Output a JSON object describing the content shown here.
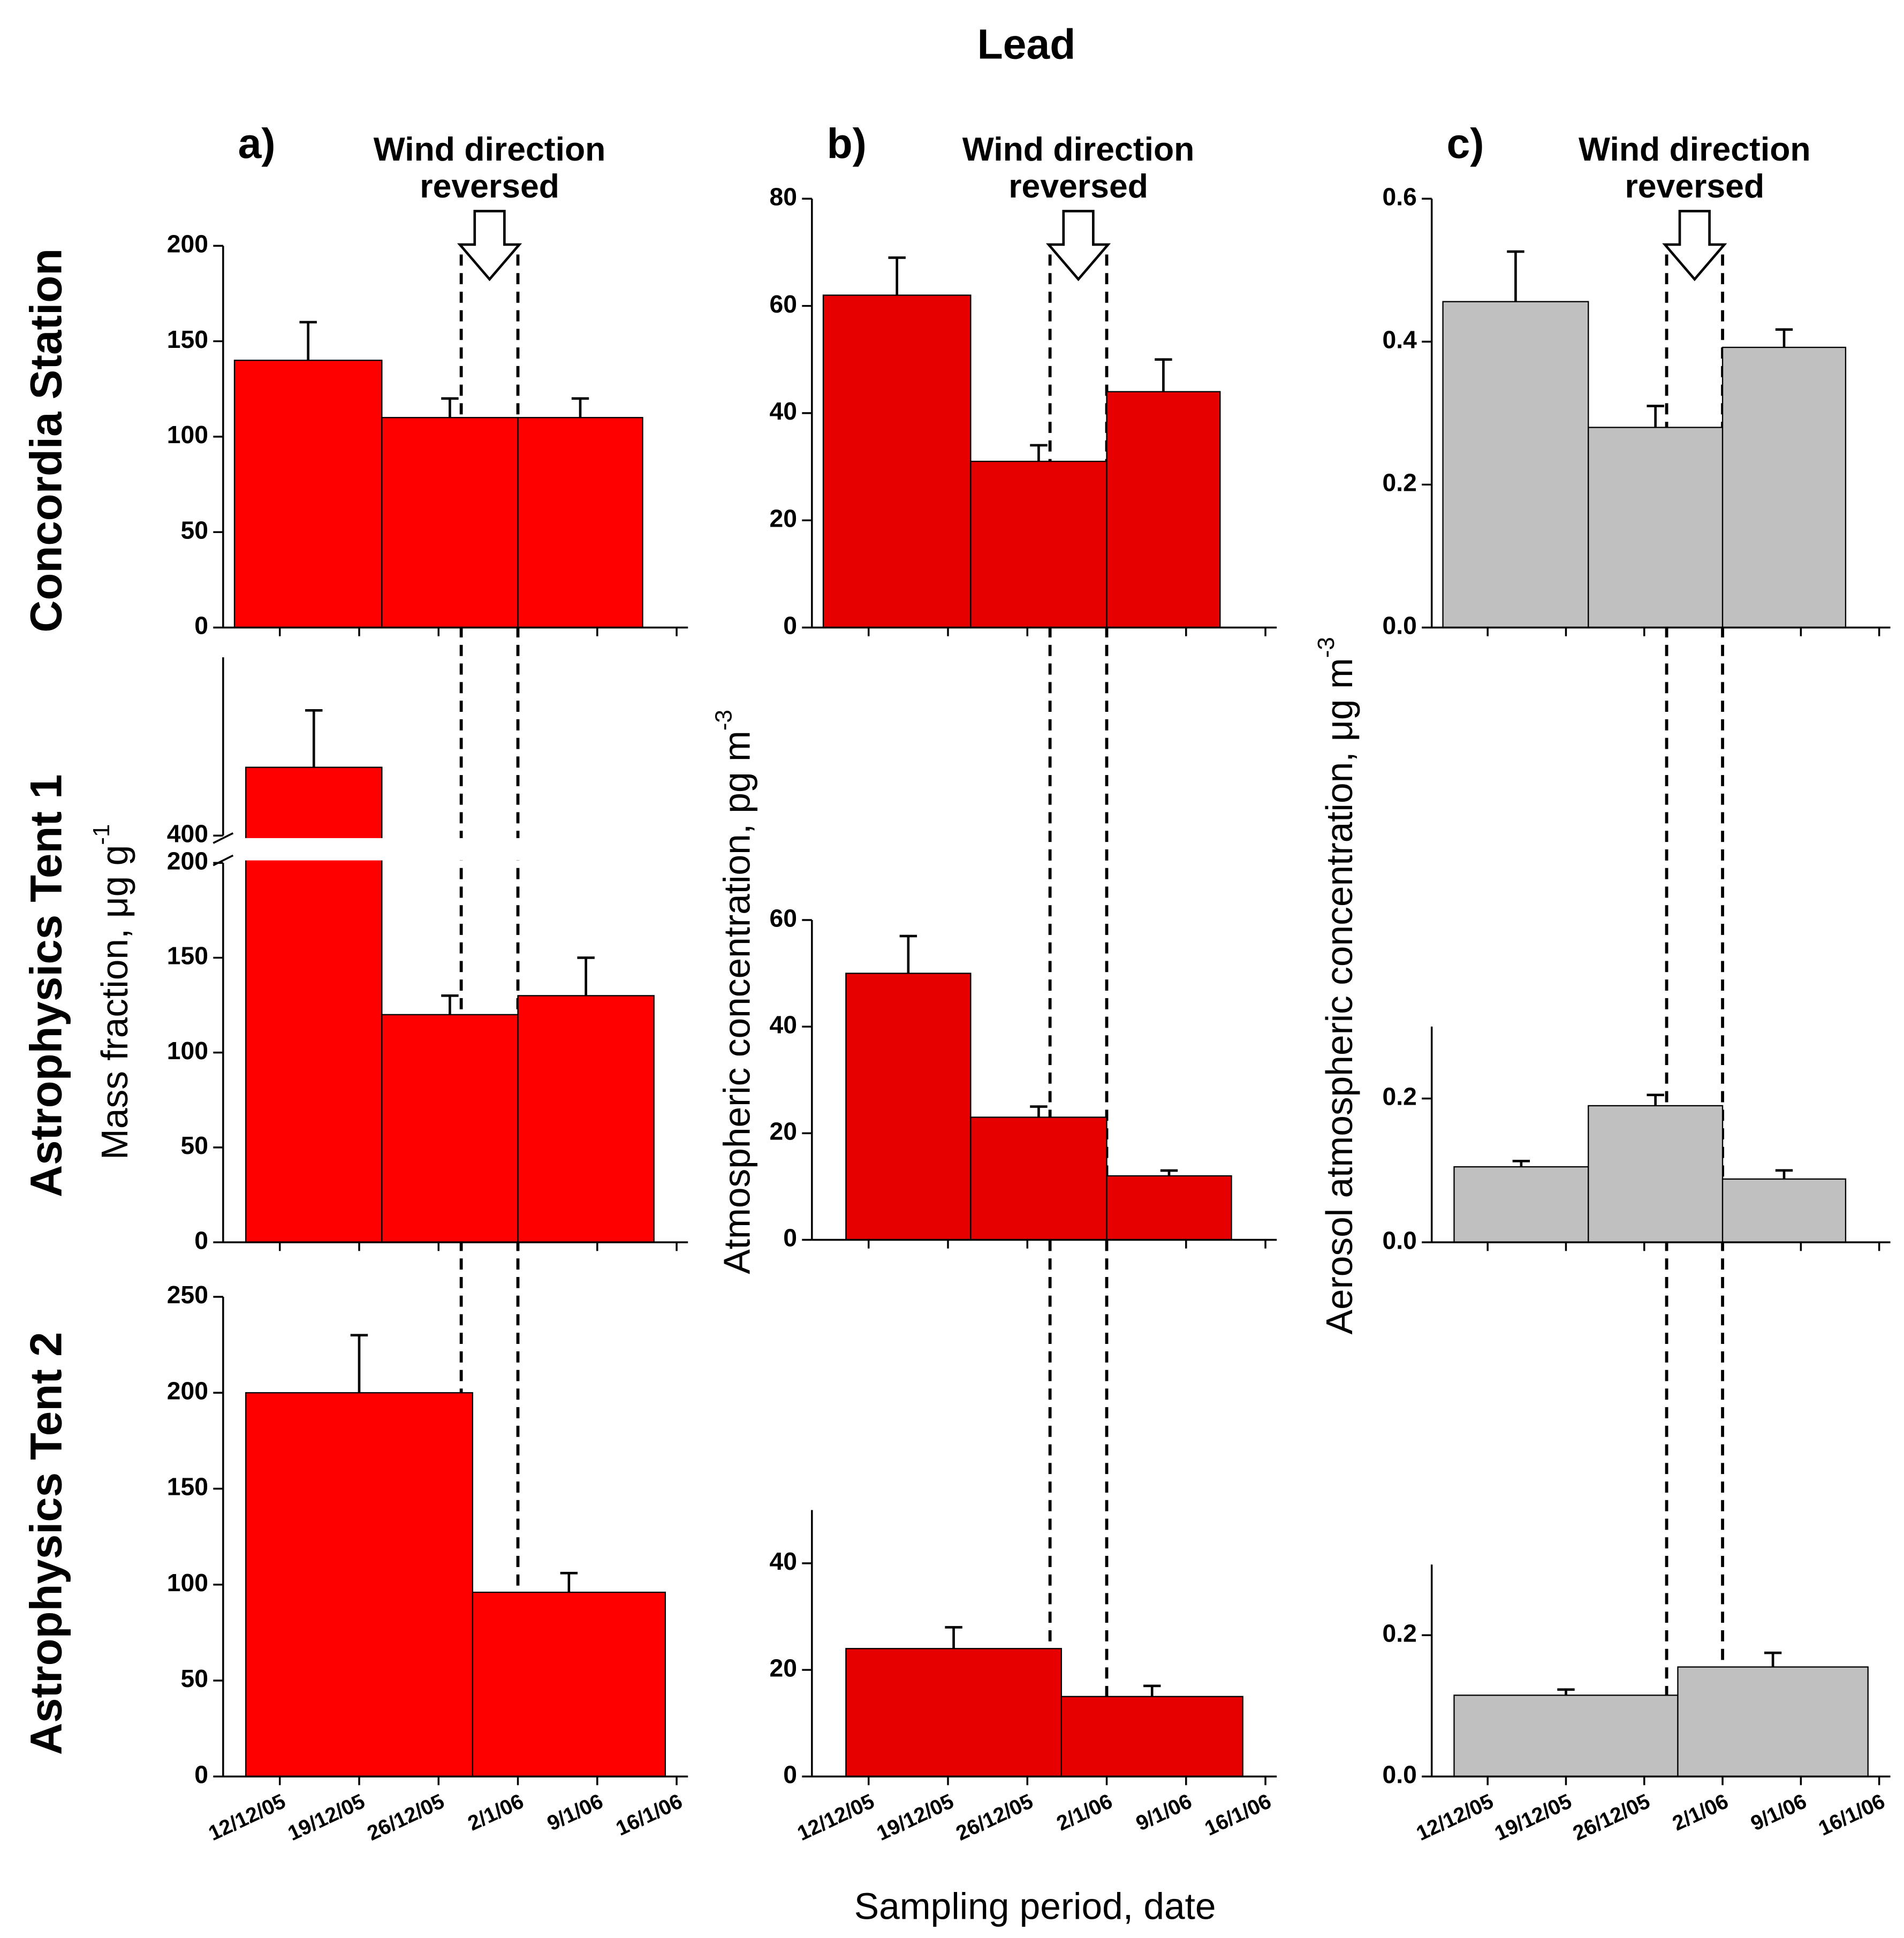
{
  "title": "Lead",
  "x_label": "Sampling period, date",
  "rows": [
    "Concordia Station",
    "Astrophysics Tent 1",
    "Astrophysics Tent 2"
  ],
  "columns": [
    {
      "label": "a)",
      "annotation": [
        "Wind direction",
        "reversed"
      ],
      "reversal": [
        "28/12/05",
        "2/1/06"
      ],
      "y_label": "Mass fraction, μg g",
      "y_label_sup": "-1"
    },
    {
      "label": "b)",
      "annotation": [
        "Wind direction",
        "reversed"
      ],
      "reversal": [
        "28/12/05",
        "2/1/06"
      ],
      "y_label": "Atmospheric concentration, pg m",
      "y_label_sup": "-3"
    },
    {
      "label": "c)",
      "annotation": [
        "Wind direction",
        "reversed"
      ],
      "reversal": [
        "28/12/05",
        "2/1/06"
      ],
      "y_label": "Aerosol atmospheric concentration, μg m",
      "y_label_sup": "-3"
    }
  ],
  "chart_data": [
    {
      "type": "histogram",
      "color": "#ff0000",
      "xlim": [
        "7/12/05",
        "17/1/06"
      ],
      "bins": [
        "8/12/05",
        "21/12/05",
        "2/1/06",
        "13/1/06"
      ],
      "values": [
        140,
        110,
        110
      ],
      "errors": [
        20,
        10,
        10
      ],
      "ylim": [
        0,
        200
      ],
      "yticks": [
        0,
        50,
        100,
        150,
        200
      ]
    },
    {
      "type": "histogram",
      "color": "#ff0000",
      "xlim": [
        "7/12/05",
        "17/1/06"
      ],
      "bins": [
        "9/12/05",
        "21/12/05",
        "2/1/06",
        "14/1/06"
      ],
      "values": [
        436,
        120,
        130
      ],
      "errors": [
        30,
        10,
        20
      ],
      "ylim": [
        0,
        494
      ],
      "axis_break": [
        200,
        400
      ],
      "yticks": [
        0,
        50,
        100,
        150,
        200,
        400
      ]
    },
    {
      "type": "histogram",
      "color": "#ff0000",
      "xlim": [
        "7/12/05",
        "17/1/06"
      ],
      "bins": [
        "9/12/05",
        "29/12/05",
        "15/1/06"
      ],
      "values": [
        200,
        96
      ],
      "errors": [
        30,
        10
      ],
      "ylim": [
        0,
        250
      ],
      "yticks": [
        0,
        50,
        100,
        150,
        200,
        250
      ],
      "xticks": [
        "12/12/05",
        "19/12/05",
        "26/12/05",
        "2/1/06",
        "9/1/06",
        "16/1/06"
      ]
    },
    {
      "type": "histogram",
      "color": "#e60000",
      "xlim": [
        "7/12/05",
        "17/1/06"
      ],
      "bins": [
        "8/12/05",
        "21/12/05",
        "2/1/06",
        "12/1/06"
      ],
      "values": [
        62,
        31,
        44
      ],
      "errors": [
        7,
        3,
        6
      ],
      "ylim": [
        0,
        80
      ],
      "yticks": [
        0,
        20,
        40,
        60,
        80
      ]
    },
    {
      "type": "histogram",
      "color": "#e60000",
      "xlim": [
        "7/12/05",
        "17/1/06"
      ],
      "bins": [
        "10/12/05",
        "21/12/05",
        "2/1/06",
        "13/1/06"
      ],
      "values": [
        50,
        23,
        12
      ],
      "errors": [
        7,
        2,
        1
      ],
      "ylim": [
        0,
        60
      ],
      "yticks": [
        0,
        20,
        40,
        60
      ]
    },
    {
      "type": "histogram",
      "color": "#e60000",
      "xlim": [
        "7/12/05",
        "17/1/06"
      ],
      "bins": [
        "10/12/05",
        "29/12/05",
        "14/1/06"
      ],
      "values": [
        24,
        15
      ],
      "errors": [
        4,
        2
      ],
      "ylim": [
        0,
        50
      ],
      "yticks": [
        0,
        20,
        40
      ],
      "xticks": [
        "12/12/05",
        "19/12/05",
        "26/12/05",
        "2/1/06",
        "9/1/06",
        "16/1/06"
      ]
    },
    {
      "type": "histogram",
      "color": "#c0c0c0",
      "xlim": [
        "7/12/05",
        "17/1/06"
      ],
      "bins": [
        "8/12/05",
        "21/12/05",
        "2/1/06",
        "13/1/06"
      ],
      "values": [
        0.456,
        0.28,
        0.392
      ],
      "errors": [
        0.07,
        0.03,
        0.025
      ],
      "ylim": [
        0,
        0.6
      ],
      "yticks": [
        {
          "value": 0,
          "label": "0.0"
        },
        {
          "value": 0.2,
          "label": "0.2"
        },
        {
          "value": 0.4,
          "label": "0.4"
        },
        {
          "value": 0.6,
          "label": "0.6"
        }
      ]
    },
    {
      "type": "histogram",
      "color": "#c0c0c0",
      "xlim": [
        "7/12/05",
        "17/1/06"
      ],
      "bins": [
        "9/12/05",
        "21/12/05",
        "2/1/06",
        "13/1/06"
      ],
      "values": [
        0.105,
        0.19,
        0.088
      ],
      "errors": [
        0.008,
        0.015,
        0.012
      ],
      "ylim": [
        0,
        0.3
      ],
      "yticks": [
        {
          "value": 0,
          "label": "0.0"
        },
        {
          "value": 0.2,
          "label": "0.2"
        }
      ]
    },
    {
      "type": "histogram",
      "color": "#c0c0c0",
      "xlim": [
        "7/12/05",
        "17/1/06"
      ],
      "bins": [
        "9/12/05",
        "29/12/05",
        "15/1/06"
      ],
      "values": [
        0.115,
        0.155
      ],
      "errors": [
        0.008,
        0.02
      ],
      "ylim": [
        0,
        0.3
      ],
      "yticks": [
        {
          "value": 0,
          "label": "0.0"
        },
        {
          "value": 0.2,
          "label": "0.2"
        }
      ],
      "xticks": [
        "12/12/05",
        "19/12/05",
        "26/12/05",
        "2/1/06",
        "9/1/06",
        "16/1/06"
      ]
    }
  ]
}
